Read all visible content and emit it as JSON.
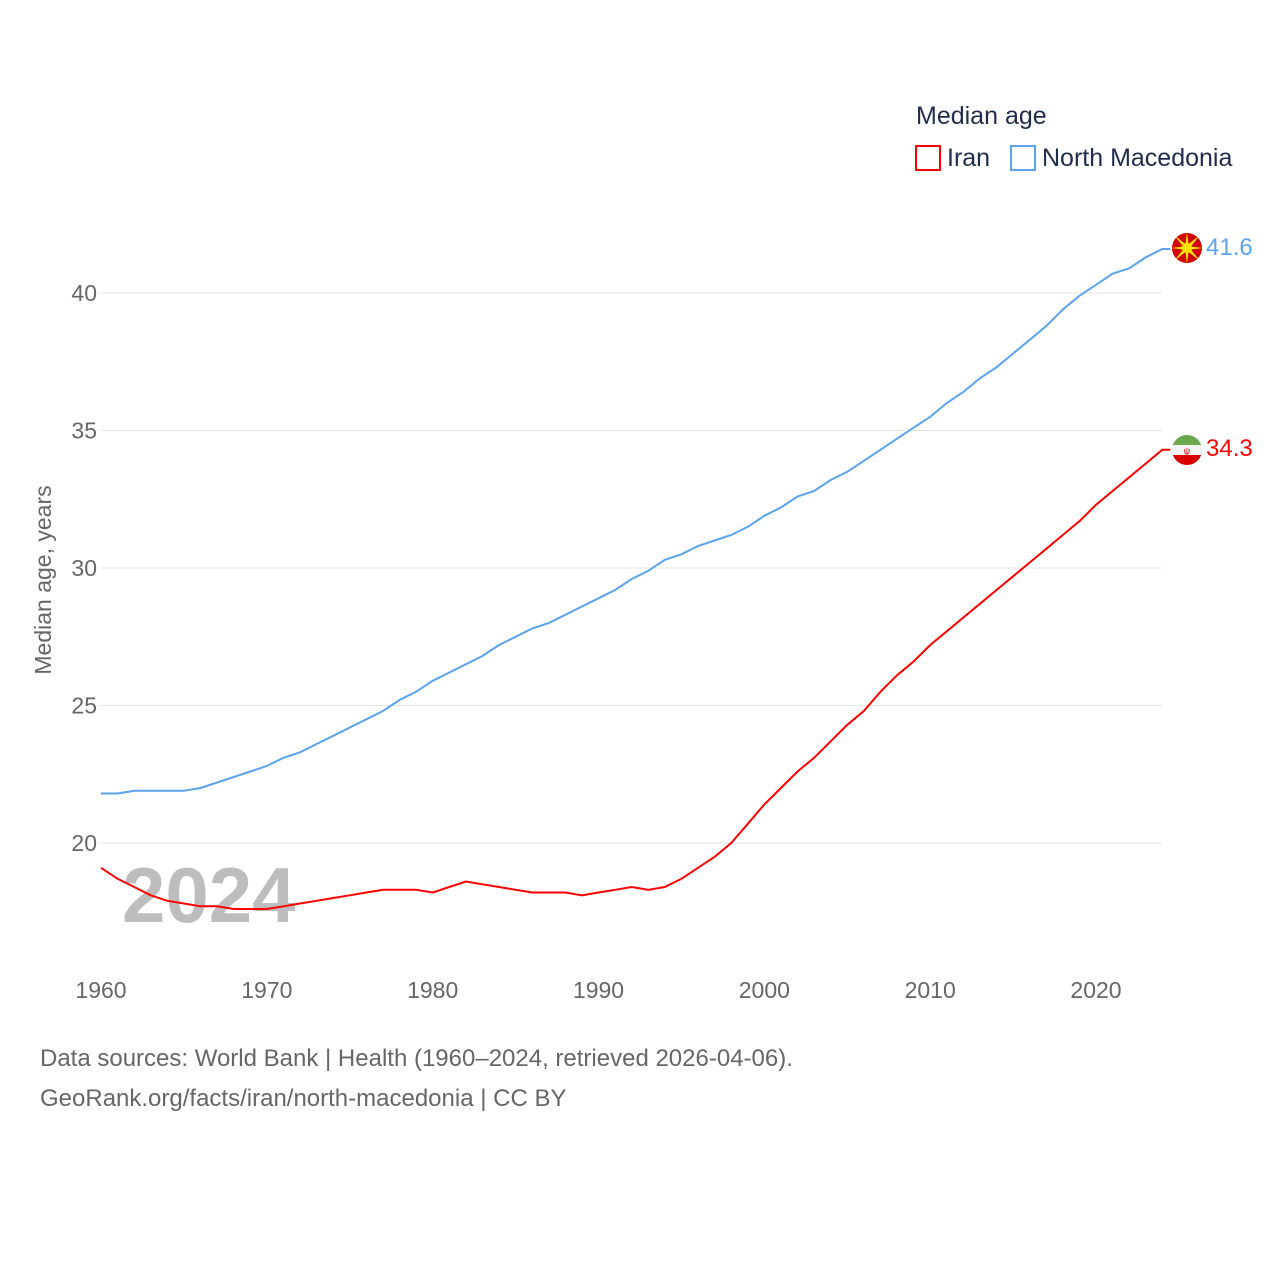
{
  "chart_data": {
    "type": "line",
    "legend_title": "Median age",
    "legend_position": "top-right",
    "ylabel": "Median age, years",
    "xlabel": "",
    "ylim": [
      16,
      42
    ],
    "xlim": [
      1960,
      2024
    ],
    "yticks": [
      20,
      25,
      30,
      35,
      40
    ],
    "xticks": [
      1960,
      1970,
      1980,
      1990,
      2000,
      2010,
      2020
    ],
    "grid": true,
    "year_watermark": "2024",
    "x": [
      1960,
      1961,
      1962,
      1963,
      1964,
      1965,
      1966,
      1967,
      1968,
      1969,
      1970,
      1971,
      1972,
      1973,
      1974,
      1975,
      1976,
      1977,
      1978,
      1979,
      1980,
      1981,
      1982,
      1983,
      1984,
      1985,
      1986,
      1987,
      1988,
      1989,
      1990,
      1991,
      1992,
      1993,
      1994,
      1995,
      1996,
      1997,
      1998,
      1999,
      2000,
      2001,
      2002,
      2003,
      2004,
      2005,
      2006,
      2007,
      2008,
      2009,
      2010,
      2011,
      2012,
      2013,
      2014,
      2015,
      2016,
      2017,
      2018,
      2019,
      2020,
      2021,
      2022,
      2023,
      2024
    ],
    "series": [
      {
        "name": "Iran",
        "color": "#ff0000",
        "end_label": "34.3",
        "values": [
          19.1,
          18.7,
          18.4,
          18.1,
          17.9,
          17.8,
          17.7,
          17.7,
          17.6,
          17.6,
          17.6,
          17.7,
          17.8,
          17.9,
          18.0,
          18.1,
          18.2,
          18.3,
          18.3,
          18.3,
          18.2,
          18.4,
          18.6,
          18.5,
          18.4,
          18.3,
          18.2,
          18.2,
          18.2,
          18.1,
          18.2,
          18.3,
          18.4,
          18.3,
          18.4,
          18.7,
          19.1,
          19.5,
          20.0,
          20.7,
          21.4,
          22.0,
          22.6,
          23.1,
          23.7,
          24.3,
          24.8,
          25.5,
          26.1,
          26.6,
          27.2,
          27.7,
          28.2,
          28.7,
          29.2,
          29.7,
          30.2,
          30.7,
          31.2,
          31.7,
          32.3,
          32.8,
          33.3,
          33.8,
          34.3
        ]
      },
      {
        "name": "North Macedonia",
        "color": "#5ba3ec",
        "end_label": "41.6",
        "values": [
          21.8,
          21.8,
          21.9,
          21.9,
          21.9,
          21.9,
          22.0,
          22.2,
          22.4,
          22.6,
          22.8,
          23.1,
          23.3,
          23.6,
          23.9,
          24.2,
          24.5,
          24.8,
          25.2,
          25.5,
          25.9,
          26.2,
          26.5,
          26.8,
          27.2,
          27.5,
          27.8,
          28.0,
          28.3,
          28.6,
          28.9,
          29.2,
          29.6,
          29.9,
          30.3,
          30.5,
          30.8,
          31.0,
          31.2,
          31.5,
          31.9,
          32.2,
          32.6,
          32.8,
          33.2,
          33.5,
          33.9,
          34.3,
          34.7,
          35.1,
          35.5,
          36.0,
          36.4,
          36.9,
          37.3,
          37.8,
          38.3,
          38.8,
          39.4,
          39.9,
          40.3,
          40.7,
          40.9,
          41.3,
          41.6
        ]
      }
    ]
  },
  "footer": {
    "line1": "Data sources: World Bank | Health (1960–2024, retrieved 2026-04-06).",
    "line2": "GeoRank.org/facts/iran/north-macedonia | CC BY"
  }
}
